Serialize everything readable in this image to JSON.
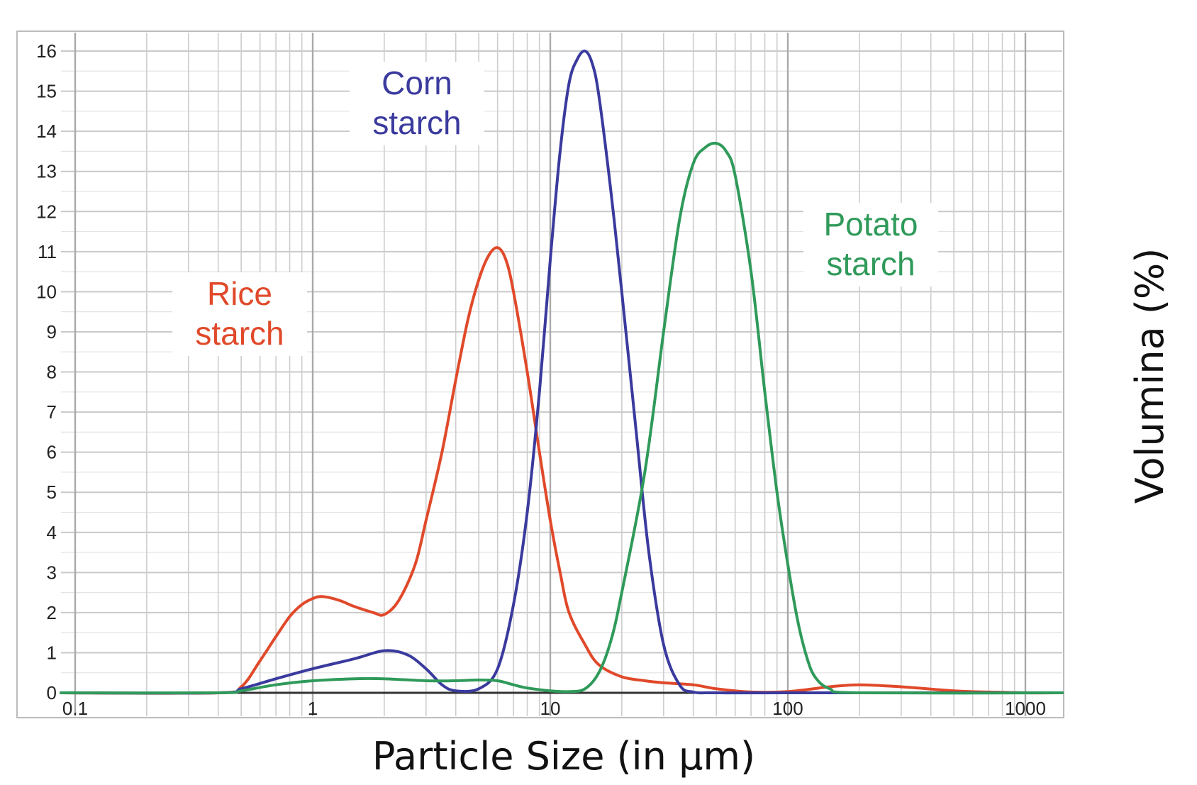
{
  "chart_data": {
    "type": "line",
    "title": "",
    "xlabel": "Particle Size (in μm)",
    "ylabel": "Volumina (%)",
    "x_scale": "log",
    "xlim": [
      0.08,
      1600
    ],
    "ylim": [
      0,
      16.5
    ],
    "x_ticks": [
      {
        "value": 0.1,
        "label": "0.1"
      },
      {
        "value": 1,
        "label": "1"
      },
      {
        "value": 10,
        "label": "10"
      },
      {
        "value": 100,
        "label": "100"
      },
      {
        "value": 1000,
        "label": "1000"
      }
    ],
    "y_ticks": [
      {
        "value": 0,
        "label": "0"
      },
      {
        "value": 1,
        "label": "1"
      },
      {
        "value": 2,
        "label": "2"
      },
      {
        "value": 3,
        "label": "3"
      },
      {
        "value": 4,
        "label": "4"
      },
      {
        "value": 5,
        "label": "5"
      },
      {
        "value": 6,
        "label": "6"
      },
      {
        "value": 7,
        "label": "7"
      },
      {
        "value": 8,
        "label": "8"
      },
      {
        "value": 9,
        "label": "9"
      },
      {
        "value": 10,
        "label": "10"
      },
      {
        "value": 11,
        "label": "11"
      },
      {
        "value": 12,
        "label": "12"
      },
      {
        "value": 13,
        "label": "13"
      },
      {
        "value": 14,
        "label": "14"
      },
      {
        "value": 15,
        "label": "15"
      },
      {
        "value": 16,
        "label": "16"
      }
    ],
    "grid": true,
    "legend": "none",
    "series": [
      {
        "name": "Rice starch",
        "label_lines": [
          "Rice",
          "starch"
        ],
        "color": "#e0492a",
        "x": [
          0.08,
          0.4,
          0.5,
          0.6,
          0.7,
          0.8,
          0.9,
          1.0,
          1.1,
          1.3,
          1.5,
          1.8,
          2.0,
          2.3,
          2.7,
          3.0,
          3.5,
          4.0,
          4.5,
          5.0,
          5.5,
          6.0,
          6.5,
          7.0,
          8.0,
          9.0,
          10.0,
          11.0,
          12.0,
          14.0,
          16.0,
          20.0,
          25.0,
          30.0,
          40.0,
          50.0,
          70.0,
          100.0,
          150.0,
          200.0,
          300.0,
          500.0,
          700.0,
          1000.0,
          1600.0
        ],
        "y": [
          0,
          0,
          0.15,
          0.8,
          1.4,
          1.9,
          2.2,
          2.35,
          2.4,
          2.3,
          2.15,
          2.0,
          1.95,
          2.3,
          3.2,
          4.3,
          6.0,
          7.8,
          9.3,
          10.3,
          10.9,
          11.1,
          10.8,
          10.0,
          8.0,
          6.0,
          4.3,
          3.0,
          2.0,
          1.2,
          0.7,
          0.4,
          0.3,
          0.25,
          0.2,
          0.1,
          0.02,
          0.03,
          0.15,
          0.2,
          0.15,
          0.05,
          0.02,
          0,
          0
        ]
      },
      {
        "name": "Corn starch",
        "label_lines": [
          "Corn",
          "starch"
        ],
        "color": "#3a3a9e",
        "x": [
          0.08,
          0.4,
          0.5,
          0.7,
          1.0,
          1.5,
          2.0,
          2.5,
          3.0,
          3.5,
          4.0,
          5.0,
          6.0,
          7.0,
          8.0,
          9.0,
          10.0,
          11.0,
          12.0,
          13.0,
          14.0,
          15.0,
          16.0,
          18.0,
          20.0,
          23.0,
          26.0,
          30.0,
          35.0,
          40.0,
          50.0,
          100.0,
          1600.0
        ],
        "y": [
          0,
          0,
          0.1,
          0.35,
          0.6,
          0.85,
          1.05,
          0.95,
          0.6,
          0.2,
          0.05,
          0.1,
          0.6,
          2.2,
          4.5,
          7.5,
          10.8,
          13.5,
          15.2,
          15.8,
          16.0,
          15.7,
          14.9,
          12.5,
          10.0,
          6.5,
          3.5,
          1.2,
          0.2,
          0.02,
          0,
          0,
          0
        ]
      },
      {
        "name": "Potato starch",
        "label_lines": [
          "Potato",
          "starch"
        ],
        "color": "#2f9a5a",
        "x": [
          0.08,
          0.4,
          0.5,
          0.7,
          1.0,
          1.5,
          2.0,
          3.0,
          4.0,
          5.0,
          6.0,
          7.0,
          8.0,
          10.0,
          12.0,
          14.0,
          16.0,
          18.0,
          20.0,
          25.0,
          30.0,
          35.0,
          40.0,
          45.0,
          50.0,
          55.0,
          60.0,
          70.0,
          80.0,
          90.0,
          100.0,
          110.0,
          120.0,
          130.0,
          150.0,
          200.0,
          1600.0
        ],
        "y": [
          0,
          0,
          0.05,
          0.2,
          0.3,
          0.35,
          0.35,
          0.3,
          0.3,
          0.32,
          0.3,
          0.2,
          0.12,
          0.05,
          0.03,
          0.1,
          0.5,
          1.3,
          2.5,
          5.5,
          9.0,
          11.8,
          13.2,
          13.6,
          13.7,
          13.5,
          12.9,
          10.5,
          7.5,
          5.0,
          3.2,
          1.8,
          0.9,
          0.4,
          0.1,
          0,
          0
        ]
      }
    ]
  }
}
